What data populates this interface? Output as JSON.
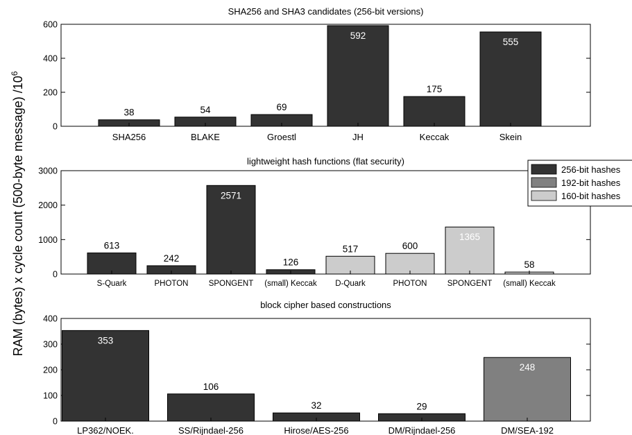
{
  "ylabel_parts": {
    "main": "RAM (bytes) x cycle count (500-byte message) /10",
    "exponent": "6"
  },
  "legend": [
    {
      "label": "256-bit hashes",
      "color": "#333333"
    },
    {
      "label": "192-bit hashes",
      "color": "#808080"
    },
    {
      "label": "160-bit hashes",
      "color": "#cccccc"
    }
  ],
  "chart_data": [
    {
      "type": "bar",
      "title": "SHA256 and SHA3 candidates (256-bit versions)",
      "categories": [
        "SHA256",
        "BLAKE",
        "Groestl",
        "JH",
        "Keccak",
        "Skein"
      ],
      "values": [
        38,
        54,
        69,
        592,
        175,
        555
      ],
      "groups": [
        "256-bit hashes",
        "256-bit hashes",
        "256-bit hashes",
        "256-bit hashes",
        "256-bit hashes",
        "256-bit hashes"
      ],
      "ylim": [
        0,
        600
      ],
      "yticks": [
        0,
        200,
        400,
        600
      ]
    },
    {
      "type": "bar",
      "title": "lightweight hash functions (flat security)",
      "categories": [
        "S-Quark",
        "PHOTON",
        "SPONGENT",
        "(small) Keccak",
        "D-Quark",
        "PHOTON",
        "SPONGENT",
        "(small) Keccak"
      ],
      "values": [
        613,
        242,
        2571,
        126,
        517,
        600,
        1365,
        58
      ],
      "groups": [
        "256-bit hashes",
        "256-bit hashes",
        "256-bit hashes",
        "256-bit hashes",
        "160-bit hashes",
        "160-bit hashes",
        "160-bit hashes",
        "160-bit hashes"
      ],
      "ylim": [
        0,
        3000
      ],
      "yticks": [
        0,
        1000,
        2000,
        3000
      ]
    },
    {
      "type": "bar",
      "title": "block cipher based constructions",
      "categories": [
        "LP362/NOEK.",
        "SS/Rijndael-256",
        "Hirose/AES-256",
        "DM/Rijndael-256",
        "DM/SEA-192"
      ],
      "values": [
        353,
        106,
        32,
        29,
        248
      ],
      "groups": [
        "256-bit hashes",
        "256-bit hashes",
        "256-bit hashes",
        "256-bit hashes",
        "192-bit hashes"
      ],
      "ylim": [
        0,
        400
      ],
      "yticks": [
        0,
        100,
        200,
        300,
        400
      ]
    }
  ]
}
